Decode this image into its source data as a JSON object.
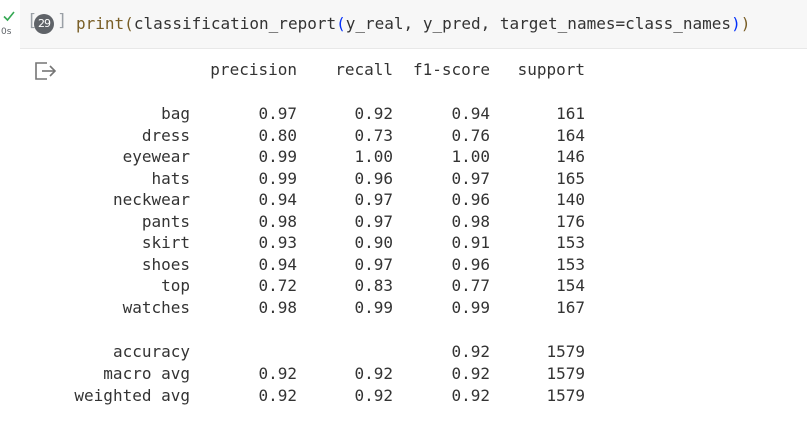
{
  "cell": {
    "exec_count": "29",
    "run_time": "0s",
    "bracket_left": "[",
    "bracket_right": "]",
    "code": {
      "func": "print",
      "open": "(",
      "inner_call": "classification_report",
      "inner_open": "(",
      "args": "y_real, y_pred, target_names=class_names",
      "inner_close": ")",
      "close": ")"
    }
  },
  "report": {
    "headers": [
      "precision",
      "recall",
      "f1-score",
      "support"
    ],
    "classes": [
      {
        "label": "bag",
        "precision": "0.97",
        "recall": "0.92",
        "f1": "0.94",
        "support": "161"
      },
      {
        "label": "dress",
        "precision": "0.80",
        "recall": "0.73",
        "f1": "0.76",
        "support": "164"
      },
      {
        "label": "eyewear",
        "precision": "0.99",
        "recall": "1.00",
        "f1": "1.00",
        "support": "146"
      },
      {
        "label": "hats",
        "precision": "0.99",
        "recall": "0.96",
        "f1": "0.97",
        "support": "165"
      },
      {
        "label": "neckwear",
        "precision": "0.94",
        "recall": "0.97",
        "f1": "0.96",
        "support": "140"
      },
      {
        "label": "pants",
        "precision": "0.98",
        "recall": "0.97",
        "f1": "0.98",
        "support": "176"
      },
      {
        "label": "skirt",
        "precision": "0.93",
        "recall": "0.90",
        "f1": "0.91",
        "support": "153"
      },
      {
        "label": "shoes",
        "precision": "0.94",
        "recall": "0.97",
        "f1": "0.96",
        "support": "153"
      },
      {
        "label": "top",
        "precision": "0.72",
        "recall": "0.83",
        "f1": "0.77",
        "support": "154"
      },
      {
        "label": "watches",
        "precision": "0.98",
        "recall": "0.99",
        "f1": "0.99",
        "support": "167"
      }
    ],
    "summary": [
      {
        "label": "accuracy",
        "precision": "",
        "recall": "",
        "f1": "0.92",
        "support": "1579"
      },
      {
        "label": "macro avg",
        "precision": "0.92",
        "recall": "0.92",
        "f1": "0.92",
        "support": "1579"
      },
      {
        "label": "weighted avg",
        "precision": "0.92",
        "recall": "0.92",
        "f1": "0.92",
        "support": "1579"
      }
    ]
  },
  "icons": {
    "status": "check-icon",
    "output": "output-redirect-icon"
  },
  "colors": {
    "success": "#34a853",
    "cell_bg": "#f7f7f7",
    "print_keyword": "#795e26",
    "nested_paren": "#0431fa",
    "text": "#333333"
  }
}
